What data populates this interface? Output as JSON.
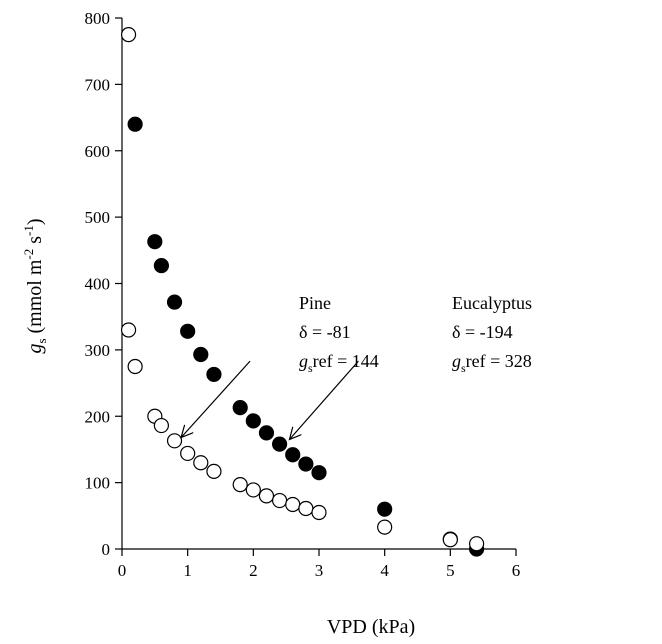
{
  "chart_data": {
    "type": "scatter",
    "title": "",
    "xlabel": "VPD (kPa)",
    "ylabel": {
      "g": "g",
      "s_sub": "s",
      "open": " (mmol m",
      "sup1": "-2",
      "mid": " s",
      "sup2": "-1",
      "close": ")"
    },
    "xlim": [
      0,
      6
    ],
    "ylim": [
      0,
      800
    ],
    "xticks": [
      0,
      1,
      2,
      3,
      4,
      5,
      6
    ],
    "yticks": [
      0,
      100,
      200,
      300,
      400,
      500,
      600,
      700,
      800
    ],
    "grid": false,
    "series": [
      {
        "marker": "filled-circle",
        "color": "#000000",
        "x": [
          0.2,
          0.5,
          0.6,
          0.8,
          1.0,
          1.2,
          1.4,
          1.8,
          2.0,
          2.2,
          2.4,
          2.6,
          2.8,
          3.0,
          4.0,
          5.0,
          5.4
        ],
        "y": [
          640,
          463,
          427,
          372,
          328,
          293,
          263,
          213,
          193,
          175,
          158,
          142,
          128,
          115,
          60,
          15,
          0
        ]
      },
      {
        "marker": "open-circle",
        "color": "#000000",
        "x": [
          0.1,
          0.1,
          0.2,
          0.5,
          0.6,
          0.8,
          1.0,
          1.2,
          1.4,
          1.8,
          2.0,
          2.2,
          2.4,
          2.6,
          2.8,
          3.0,
          4.0,
          5.0,
          5.4
        ],
        "y": [
          775,
          330,
          275,
          200,
          186,
          163,
          144,
          130,
          117,
          97,
          89,
          80,
          73,
          67,
          61,
          55,
          33,
          14,
          8
        ]
      }
    ],
    "annotations": [
      {
        "id": "pine",
        "name": "Pine",
        "delta": "δ = -81",
        "gref_g": "g",
        "gref_sub": "s",
        "gref_rest": "ref = 144",
        "arrow_from": [
          1.95,
          283
        ],
        "arrow_to": [
          0.9,
          168
        ]
      },
      {
        "id": "eucalyptus",
        "name": "Eucalyptus",
        "delta": "δ = -194",
        "gref_g": "g",
        "gref_sub": "s",
        "gref_rest": "ref = 328",
        "arrow_from": [
          3.6,
          283
        ],
        "arrow_to": [
          2.55,
          165
        ]
      }
    ]
  }
}
